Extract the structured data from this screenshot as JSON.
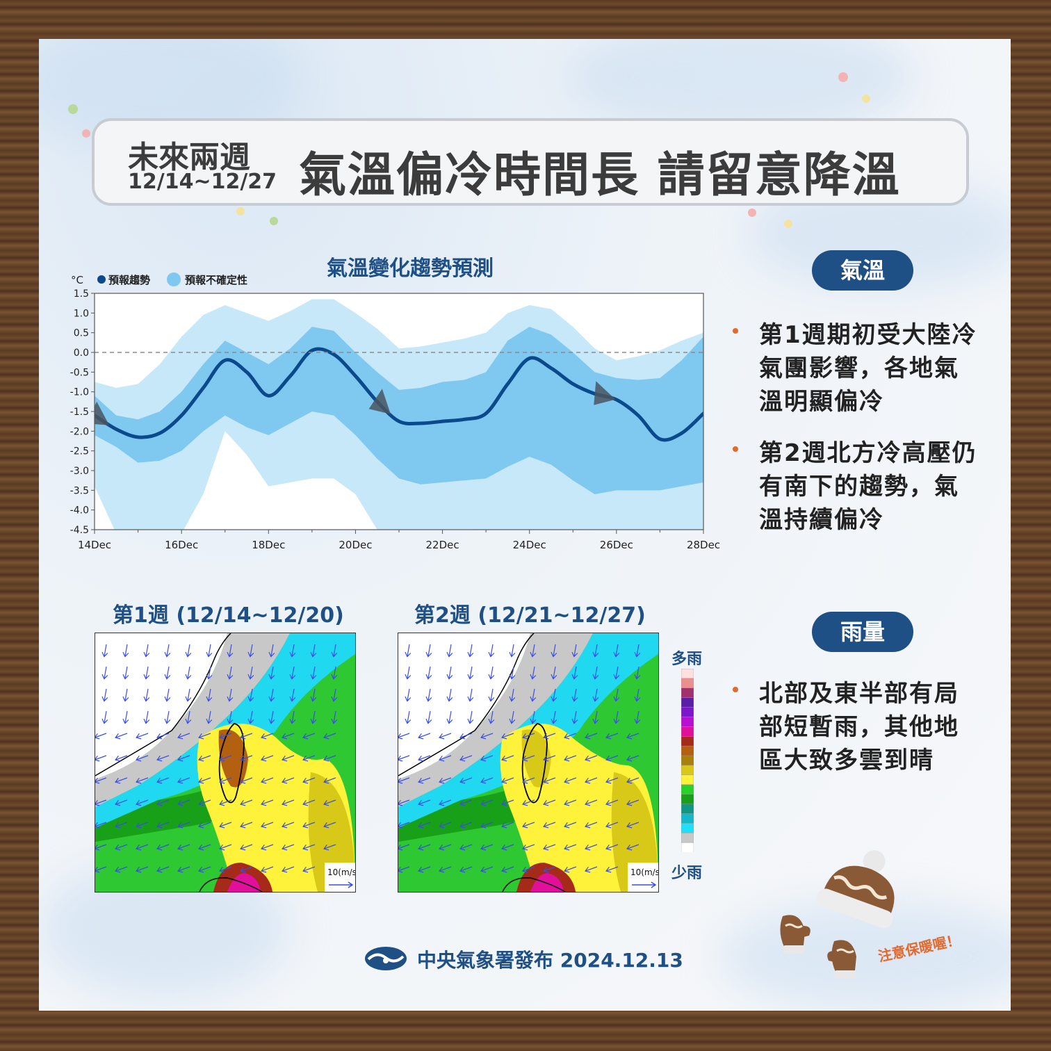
{
  "header": {
    "subtitle": "未來兩週",
    "date_range": "12/14~12/27",
    "title": "氣溫偏冷時間長  請留意降溫"
  },
  "chart_data": {
    "type": "line",
    "title": "氣溫變化趨勢預測",
    "unit": "°C",
    "legend": [
      "預報趨勢",
      "預報不確定性"
    ],
    "x_tick_labels": [
      "14Dec",
      "16Dec",
      "18Dec",
      "20Dec",
      "22Dec",
      "24Dec",
      "26Dec",
      "28Dec"
    ],
    "y_tick_labels": [
      "1.5",
      "1.0",
      "0.5",
      "0.0",
      "-0.5",
      "-1.0",
      "-1.5",
      "-2.0",
      "-2.5",
      "-3.0",
      "-3.5",
      "-4.0",
      "-4.5"
    ],
    "ylim": [
      -4.5,
      1.5
    ],
    "xlim": [
      14,
      28
    ],
    "grid": false,
    "reference_line": 0.0,
    "series": [
      {
        "x": [
          14,
          14.5,
          15,
          15.5,
          16,
          16.5,
          17,
          17.5,
          18,
          18.5,
          19,
          19.5,
          20,
          20.5,
          21,
          21.5,
          22,
          22.5,
          23,
          23.5,
          24,
          24.5,
          25,
          25.5,
          26,
          26.5,
          27,
          27.5,
          28
        ],
        "values": [
          -1.6,
          -1.95,
          -2.15,
          -2.05,
          -1.6,
          -0.9,
          -0.2,
          -0.5,
          -1.1,
          -0.6,
          0.05,
          -0.05,
          -0.6,
          -1.25,
          -1.75,
          -1.8,
          -1.75,
          -1.7,
          -1.55,
          -0.8,
          -0.15,
          -0.4,
          -0.8,
          -1.05,
          -1.2,
          -1.6,
          -2.2,
          -2.05,
          -1.55
        ]
      }
    ],
    "band_inner_upper": [
      -1.1,
      -1.6,
      -1.7,
      -1.5,
      -1.0,
      -0.3,
      0.3,
      0.0,
      -0.3,
      0.1,
      0.65,
      0.55,
      0.0,
      -0.5,
      -0.95,
      -0.9,
      -0.75,
      -0.7,
      -0.5,
      0.3,
      0.65,
      0.45,
      0.0,
      -0.5,
      -0.65,
      -0.7,
      -0.65,
      -0.2,
      0.4
    ],
    "band_inner_lower": [
      -2.1,
      -2.4,
      -2.8,
      -2.75,
      -2.5,
      -2.0,
      -1.6,
      -1.9,
      -2.1,
      -1.8,
      -1.5,
      -1.6,
      -2.1,
      -2.7,
      -3.2,
      -3.35,
      -3.3,
      -3.25,
      -3.2,
      -2.9,
      -2.65,
      -2.85,
      -3.25,
      -3.6,
      -3.5,
      -3.5,
      -3.5,
      -3.4,
      -3.3
    ],
    "band_outer_upper": [
      -0.75,
      -0.9,
      -0.8,
      -0.3,
      0.4,
      0.95,
      1.2,
      1.0,
      0.8,
      1.05,
      1.35,
      1.35,
      1.0,
      0.6,
      0.1,
      0.15,
      0.25,
      0.35,
      0.5,
      1.0,
      1.2,
      1.1,
      0.65,
      0.1,
      -0.2,
      -0.1,
      0.05,
      0.3,
      0.5
    ],
    "band_outer_lower": [
      -3.4,
      -4.6,
      -4.6,
      -4.6,
      -4.6,
      -3.6,
      -2.0,
      -2.6,
      -3.4,
      -3.3,
      -3.2,
      -3.2,
      -3.6,
      -4.5,
      -4.6,
      -4.6,
      -4.6,
      -4.6,
      -4.6,
      -4.6,
      -4.6,
      -4.6,
      -4.6,
      -4.6,
      -4.6,
      -4.6,
      -4.6,
      -4.6,
      -4.6
    ],
    "arrow_markers_x": [
      14.1,
      20.6,
      25.7
    ]
  },
  "chart_style": {
    "line_color": "#0a4a8c",
    "band_inner_color": "#7fc8ef",
    "band_outer_color": "#c6e8f8",
    "background": "#ffffff",
    "arrow_color": "#4a5560"
  },
  "temp_section": {
    "pill_label": "氣溫",
    "bullets": [
      "第1週期初受大陸冷氣團影響，各地氣溫明顯偏冷",
      "第2週北方冷高壓仍有南下的趨勢，氣溫持續偏冷"
    ]
  },
  "rain_section": {
    "pill_label": "雨量",
    "bullets": [
      "北部及東半部有局部短暫雨，其他地區大致多雲到晴"
    ]
  },
  "maps": [
    {
      "label": "第1週 (12/14~12/20)",
      "wind_scale": "10(m/s"
    },
    {
      "label": "第2週 (12/21~12/27)",
      "wind_scale": "10(m/s"
    }
  ],
  "rain_legend": {
    "top_label": "多雨",
    "bottom_label": "少雨",
    "colors": [
      "#fde0e0",
      "#ec8f8f",
      "#a0306e",
      "#5a1ea5",
      "#7b17c9",
      "#b611d1",
      "#e0109a",
      "#a52a1a",
      "#b36010",
      "#a8800e",
      "#d8c818",
      "#fff23a",
      "#28d228",
      "#18a018",
      "#129880",
      "#14b8c8",
      "#20e0f8",
      "#c8c8c8",
      "#ffffff"
    ]
  },
  "footer": {
    "text": "中央氣象署發布 2024.12.13"
  },
  "decoration": {
    "hat_note": "注意保暖喔！"
  }
}
